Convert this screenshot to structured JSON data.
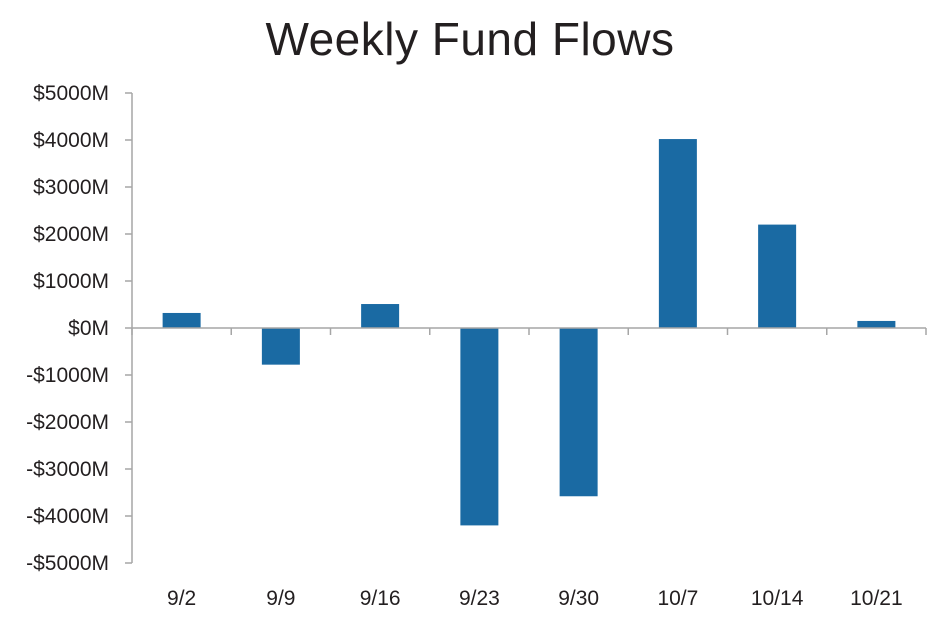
{
  "chart_data": {
    "type": "bar",
    "title": "Weekly Fund Flows",
    "xlabel": "",
    "ylabel": "",
    "categories": [
      "9/2",
      "9/9",
      "9/16",
      "9/23",
      "9/30",
      "10/7",
      "10/14",
      "10/21"
    ],
    "values": [
      320,
      -780,
      510,
      -4200,
      -3580,
      4020,
      2200,
      150
    ],
    "ylim": [
      -5000,
      5000
    ],
    "yticks": [
      5000,
      4000,
      3000,
      2000,
      1000,
      0,
      -1000,
      -2000,
      -3000,
      -4000,
      -5000
    ],
    "ytick_labels": [
      "$5000M",
      "$4000M",
      "$3000M",
      "$2000M",
      "$1000M",
      "$0M",
      "-$1000M",
      "-$2000M",
      "-$3000M",
      "-$4000M",
      "-$5000M"
    ],
    "grid": false,
    "legend": "none",
    "bar_color": "#1a6aa3",
    "axis_color": "#a6a6a6"
  }
}
